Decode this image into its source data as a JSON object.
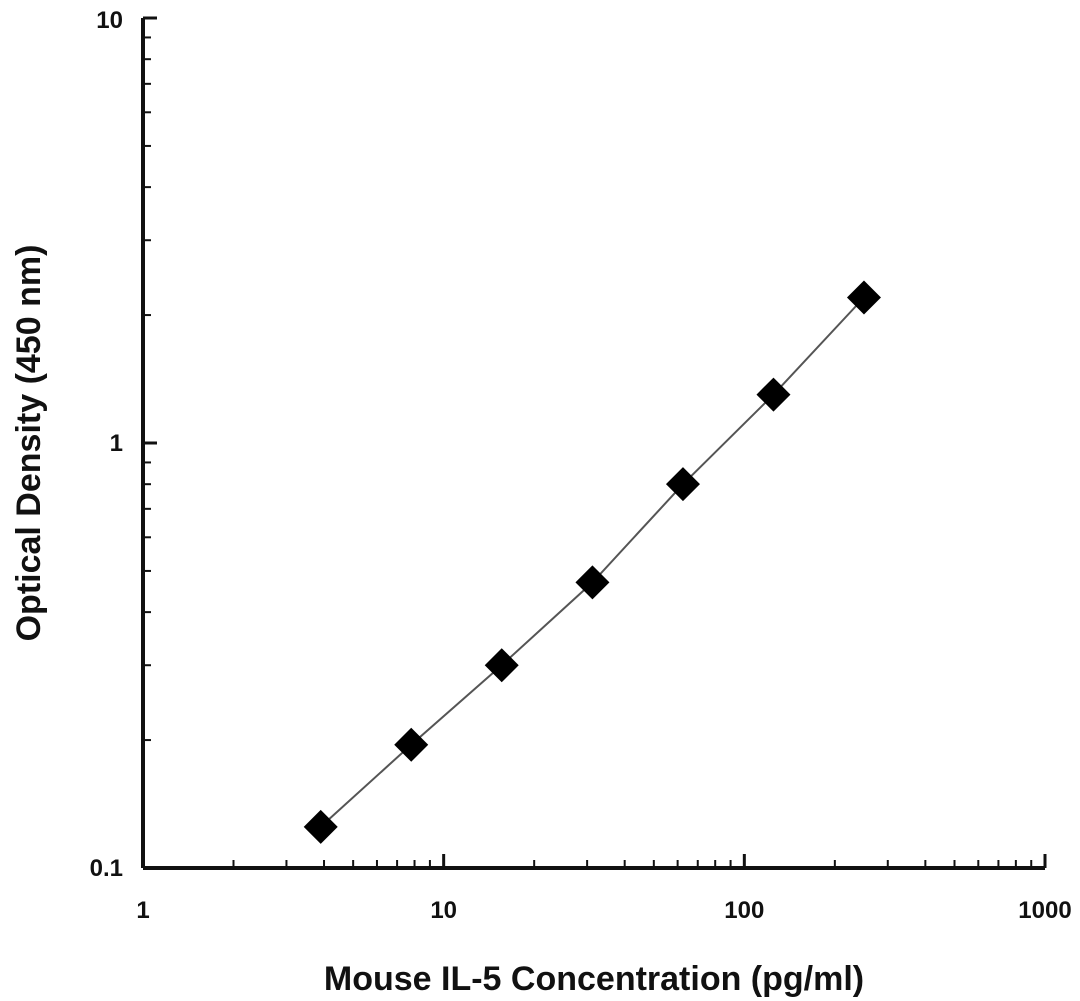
{
  "chart_data": {
    "type": "scatter",
    "title": "",
    "xlabel": "Mouse IL-5 Concentration (pg/ml)",
    "ylabel": "Optical Density (450 nm)",
    "xscale": "log",
    "yscale": "log",
    "xlim": [
      1,
      1000
    ],
    "ylim": [
      0.1,
      10
    ],
    "grid": false,
    "legend": "none",
    "x_ticks": [
      "1",
      "10",
      "100",
      "1000"
    ],
    "y_ticks": [
      "0.1",
      "1",
      "10"
    ],
    "line": true,
    "marker": "diamond",
    "marker_color": "#000000",
    "line_color": "#555555",
    "series": [
      {
        "x": [
          3.9,
          7.8,
          15.6,
          31.25,
          62.5,
          125,
          250
        ],
        "y": [
          0.125,
          0.195,
          0.3,
          0.47,
          0.8,
          1.3,
          2.2
        ]
      }
    ]
  }
}
